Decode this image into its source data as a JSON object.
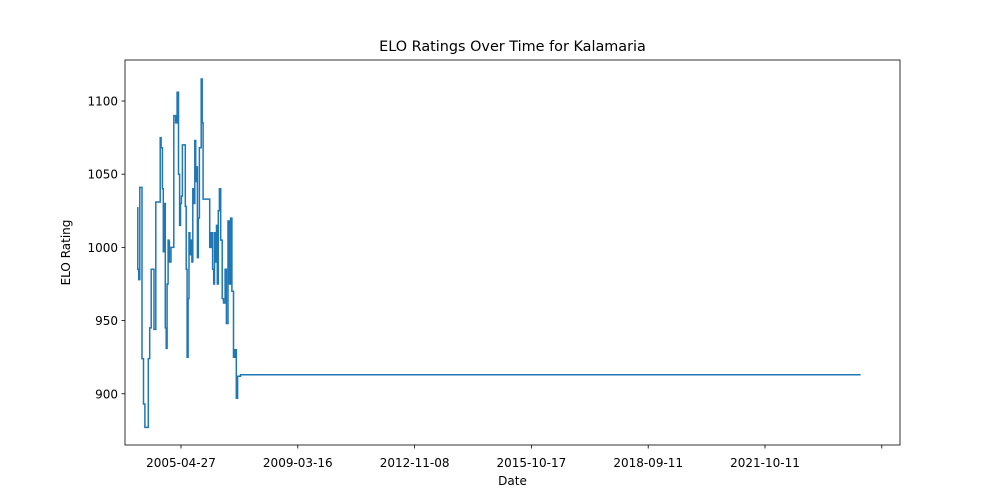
{
  "chart_data": {
    "type": "line",
    "title": "ELO Ratings Over Time for Kalamaria",
    "xlabel": "Date",
    "ylabel": "ELO Rating",
    "x_tick_labels": [
      "2005-04-27",
      "2009-03-16",
      "2012-11-08",
      "2015-10-17",
      "2018-09-11",
      "2021-10-11",
      ""
    ],
    "y_ticks": [
      900,
      950,
      1000,
      1050,
      1100
    ],
    "ylim": [
      865,
      1128
    ],
    "xlim": [
      "2004-01-25",
      "2026-10-16"
    ],
    "grid": false,
    "series": [
      {
        "color": "#1f77b4",
        "x": [
          "2004-06-01",
          "2004-06-10",
          "2004-06-20",
          "2004-07-01",
          "2004-07-10",
          "2004-07-25",
          "2004-08-10",
          "2004-08-25",
          "2004-09-05",
          "2004-09-15",
          "2004-10-01",
          "2004-10-15",
          "2004-11-01",
          "2004-12-01",
          "2004-12-20",
          "2005-01-10",
          "2005-01-25",
          "2005-02-05",
          "2005-02-15",
          "2005-03-01",
          "2005-03-10",
          "2005-03-20",
          "2005-04-01",
          "2005-04-10",
          "2005-04-20",
          "2005-05-01",
          "2005-05-10",
          "2005-05-15",
          "2005-06-01",
          "2005-07-01",
          "2005-07-20",
          "2005-08-05",
          "2005-08-20",
          "2005-09-01",
          "2005-09-10",
          "2005-09-20",
          "2005-10-01",
          "2005-10-10",
          "2005-10-20",
          "2005-11-01",
          "2005-11-10",
          "2005-11-20",
          "2005-12-01",
          "2005-12-10",
          "2005-12-20",
          "2006-01-01",
          "2006-01-10",
          "2006-01-20",
          "2006-02-01",
          "2006-02-10",
          "2006-02-20",
          "2006-03-01",
          "2006-03-10",
          "2006-03-20",
          "2006-04-01",
          "2006-04-10",
          "2006-04-20",
          "2006-05-01",
          "2006-05-10",
          "2006-05-20",
          "2006-06-10",
          "2006-07-01",
          "2006-07-20",
          "2006-08-05",
          "2006-08-20",
          "2006-09-01",
          "2006-09-10",
          "2006-09-20",
          "2006-10-01",
          "2006-10-10",
          "2006-10-20",
          "2006-11-01",
          "2006-11-15",
          "2006-12-01",
          "2006-12-15",
          "2007-01-01",
          "2007-01-15",
          "2007-02-01",
          "2007-02-15",
          "2007-03-01",
          "2007-03-15",
          "2007-04-01",
          "2007-04-15",
          "2007-05-01",
          "2007-05-15",
          "2007-06-15",
          "2007-07-15",
          "2007-08-01",
          "2007-08-15",
          "2007-09-01",
          "2007-09-10",
          "2007-09-20",
          "2007-10-01",
          "2007-10-10",
          "2007-10-20",
          "2007-11-01",
          "2007-11-10",
          "2007-11-20",
          "2007-12-01",
          "2007-12-10",
          "2007-12-20",
          "2008-01-01",
          "2008-01-10",
          "2008-01-20",
          "2008-02-01",
          "2008-02-10",
          "2008-02-20",
          "2008-03-01",
          "2008-03-10",
          "2008-03-20",
          "2008-04-01",
          "2008-04-10",
          "2008-04-20",
          "2008-05-01",
          "2008-05-10",
          "2008-05-20",
          "2008-06-01",
          "2008-06-10",
          "2008-06-20",
          "2025-08-20"
        ],
        "values": [
          1027,
          985,
          978,
          1041,
          1041,
          924,
          893,
          877,
          877,
          877,
          924,
          945,
          985,
          944,
          1031,
          1031,
          1031,
          1075,
          1068,
          1040,
          997,
          1030,
          945,
          931,
          975,
          1005,
          1004,
          990,
          1000,
          1090,
          1085,
          1106,
          1050,
          1015,
          1030,
          1035,
          1070,
          1070,
          1070,
          1028,
          985,
          925,
          965,
          1010,
          995,
          1005,
          990,
          1040,
          1030,
          1073,
          1045,
          1055,
          993,
          1020,
          1068,
          1068,
          1115,
          1085,
          1033,
          1033,
          1033,
          1033,
          1000,
          1010,
          985,
          975,
          1010,
          990,
          1015,
          975,
          1025,
          1040,
          1005,
          965,
          962,
          985,
          948,
          1018,
          975,
          1020,
          970,
          925,
          930,
          897,
          912,
          913,
          913,
          913,
          913,
          913,
          913,
          913,
          913,
          913,
          913,
          913,
          913,
          913,
          913,
          913,
          913,
          913,
          913,
          913,
          913,
          913,
          913,
          913,
          913,
          913,
          913,
          913,
          913,
          913,
          913,
          913,
          913,
          913,
          913,
          913
        ]
      }
    ]
  }
}
